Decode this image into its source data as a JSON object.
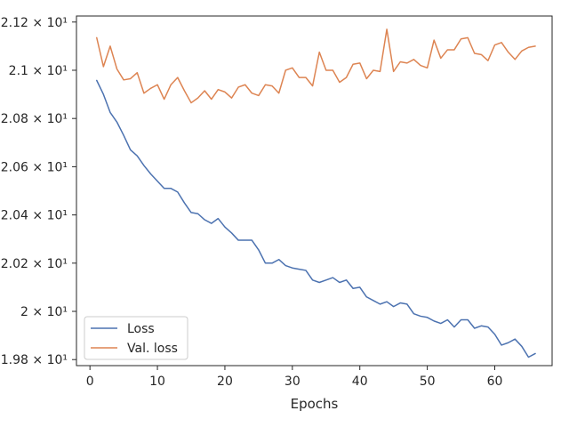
{
  "chart_data": {
    "type": "line",
    "title": "",
    "xlabel": "Epochs",
    "ylabel": "",
    "xlim": [
      -2,
      68.5
    ],
    "ylim": [
      19.775,
      21.225
    ],
    "xticks": [
      0,
      10,
      20,
      30,
      40,
      50,
      60
    ],
    "xtick_labels": [
      "0",
      "10",
      "20",
      "30",
      "40",
      "50",
      "60"
    ],
    "yticks": [
      19.8,
      20.0,
      20.2,
      20.4,
      20.6,
      20.8,
      21.0,
      21.2
    ],
    "ytick_labels": [
      "1.98 × 10¹",
      "2 × 10¹",
      "2.02 × 10¹",
      "2.04 × 10¹",
      "2.06 × 10¹",
      "2.08 × 10¹",
      "2.1 × 10¹",
      "2.12 × 10¹"
    ],
    "grid": false,
    "legend_position": "lower-left",
    "x": [
      1,
      2,
      3,
      4,
      5,
      6,
      7,
      8,
      9,
      10,
      11,
      12,
      13,
      14,
      15,
      16,
      17,
      18,
      19,
      20,
      21,
      22,
      23,
      24,
      25,
      26,
      27,
      28,
      29,
      30,
      31,
      32,
      33,
      34,
      35,
      36,
      37,
      38,
      39,
      40,
      41,
      42,
      43,
      44,
      45,
      46,
      47,
      48,
      49,
      50,
      51,
      52,
      53,
      54,
      55,
      56,
      57,
      58,
      59,
      60,
      61,
      62,
      63,
      64,
      65,
      66
    ],
    "series": [
      {
        "name": "Loss",
        "color": "#4c72b0",
        "values": [
          20.958,
          20.9,
          20.825,
          20.785,
          20.73,
          20.67,
          20.645,
          20.605,
          20.57,
          20.54,
          20.51,
          20.51,
          20.495,
          20.45,
          20.41,
          20.405,
          20.38,
          20.365,
          20.385,
          20.35,
          20.325,
          20.295,
          20.295,
          20.295,
          20.255,
          20.2,
          20.2,
          20.215,
          20.19,
          20.18,
          20.175,
          20.17,
          20.13,
          20.12,
          20.13,
          20.14,
          20.12,
          20.13,
          20.095,
          20.1,
          20.06,
          20.045,
          20.03,
          20.04,
          20.02,
          20.035,
          20.03,
          19.99,
          19.98,
          19.975,
          19.96,
          19.95,
          19.965,
          19.935,
          19.965,
          19.965,
          19.93,
          19.94,
          19.935,
          19.905,
          19.86,
          19.87,
          19.885,
          19.855,
          19.81,
          19.825
        ]
      },
      {
        "name": "Val. loss",
        "color": "#dd8452",
        "values": [
          21.135,
          21.015,
          21.1,
          21.005,
          20.96,
          20.965,
          20.99,
          20.905,
          20.925,
          20.94,
          20.88,
          20.94,
          20.97,
          20.915,
          20.865,
          20.885,
          20.915,
          20.88,
          20.92,
          20.91,
          20.885,
          20.93,
          20.94,
          20.905,
          20.895,
          20.94,
          20.935,
          20.905,
          21.0,
          21.01,
          20.97,
          20.97,
          20.935,
          21.075,
          21.0,
          21.0,
          20.95,
          20.97,
          21.025,
          21.03,
          20.965,
          21.0,
          20.995,
          21.17,
          20.995,
          21.035,
          21.03,
          21.045,
          21.02,
          21.01,
          21.125,
          21.05,
          21.085,
          21.085,
          21.13,
          21.135,
          21.07,
          21.065,
          21.04,
          21.105,
          21.115,
          21.075,
          21.045,
          21.08,
          21.095,
          21.1
        ]
      }
    ]
  }
}
